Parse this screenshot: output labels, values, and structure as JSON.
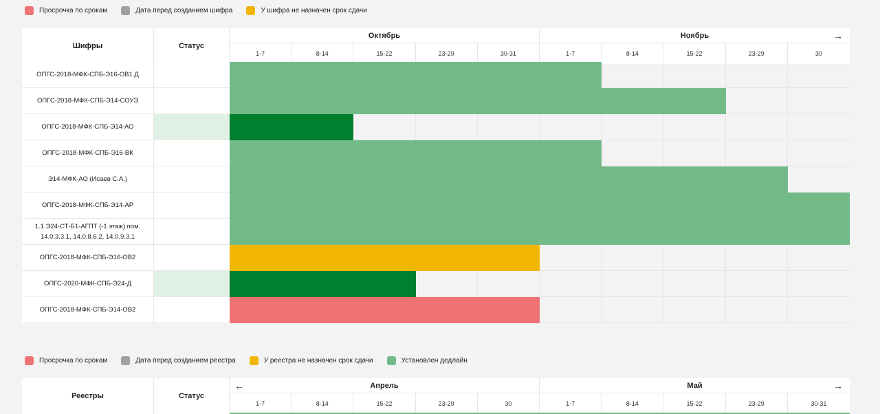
{
  "colors": {
    "overdue": "#ef7274",
    "before_creation": "#a0a0a0",
    "no_deadline": "#f1b700",
    "deadline_set": "#72bb89",
    "completed": "#007f2f",
    "status_active": "#dff0e4"
  },
  "legend1": [
    {
      "label": "Просрочка по срокам",
      "color": "overdue"
    },
    {
      "label": "Дата перед созданием шифра",
      "color": "before_creation"
    },
    {
      "label": "У шифра не назначен срок сдачи",
      "color": "no_deadline"
    }
  ],
  "table1": {
    "col_name": "Шифры",
    "col_status": "Статус",
    "months": [
      "Октябрь",
      "Ноябрь"
    ],
    "weeks": [
      "1-7",
      "8-14",
      "15-22",
      "23-29",
      "30-31",
      "1-7",
      "8-14",
      "15-22",
      "23-29",
      "30"
    ],
    "nav_next": "→",
    "rows": [
      {
        "name": "ОПГС-2018-МФК-СПБ-Э16-ОВ1.Д",
        "status_active": false,
        "bar_end": 6,
        "bar": "deadline_set"
      },
      {
        "name": "ОПГС-2018-МФК-СПБ-Э14-СОУЭ",
        "status_active": false,
        "bar_end": 8,
        "bar": "deadline_set"
      },
      {
        "name": "ОПГС-2018-МФК-СПБ-Э14-АО",
        "status_active": true,
        "bar_end": 2,
        "bar": "completed"
      },
      {
        "name": "ОПГС-2018-МФК-СПБ-Э16-ВК",
        "status_active": false,
        "bar_end": 6,
        "bar": "deadline_set"
      },
      {
        "name": "Э14-МФК-АО (Исаев С.А.)",
        "status_active": false,
        "bar_end": 9,
        "bar": "deadline_set"
      },
      {
        "name": "ОПГС-2018-МФК-СПБ-Э14-АР",
        "status_active": false,
        "bar_end": 10,
        "bar": "deadline_set"
      },
      {
        "name": "1.1 Э24-СТ-Б1-АГПТ (-1 этаж) пом. 14.0.3.3.1, 14.0.8.6.2, 14.0.9.3.1",
        "status_active": false,
        "bar_end": 10,
        "bar": "deadline_set"
      },
      {
        "name": "ОПГС-2018-МФК-СПБ-Э16-ОВ2",
        "status_active": false,
        "bar_end": 5,
        "bar": "no_deadline"
      },
      {
        "name": "ОПГС-2020-МФК-СПБ-Э24-Д",
        "status_active": true,
        "bar_end": 3,
        "bar": "completed"
      },
      {
        "name": "ОПГС-2018-МФК-СПБ-Э14-ОВ2",
        "status_active": false,
        "bar_end": 5,
        "bar": "overdue"
      }
    ]
  },
  "legend2": [
    {
      "label": "Просрочка по срокам",
      "color": "overdue"
    },
    {
      "label": "Дата перед созданием реестра",
      "color": "before_creation"
    },
    {
      "label": "У реестра не назначен срок сдачи",
      "color": "no_deadline"
    },
    {
      "label": "Установлен дедлайн",
      "color": "deadline_set"
    }
  ],
  "table2": {
    "col_name": "Реестры",
    "col_status": "Статус",
    "months": [
      "Апрель",
      "Май"
    ],
    "weeks": [
      "1-7",
      "8-14",
      "15-22",
      "23-29",
      "30",
      "1-7",
      "8-14",
      "15-22",
      "23-29",
      "30-31"
    ],
    "nav_prev": "←",
    "nav_next": "→"
  }
}
